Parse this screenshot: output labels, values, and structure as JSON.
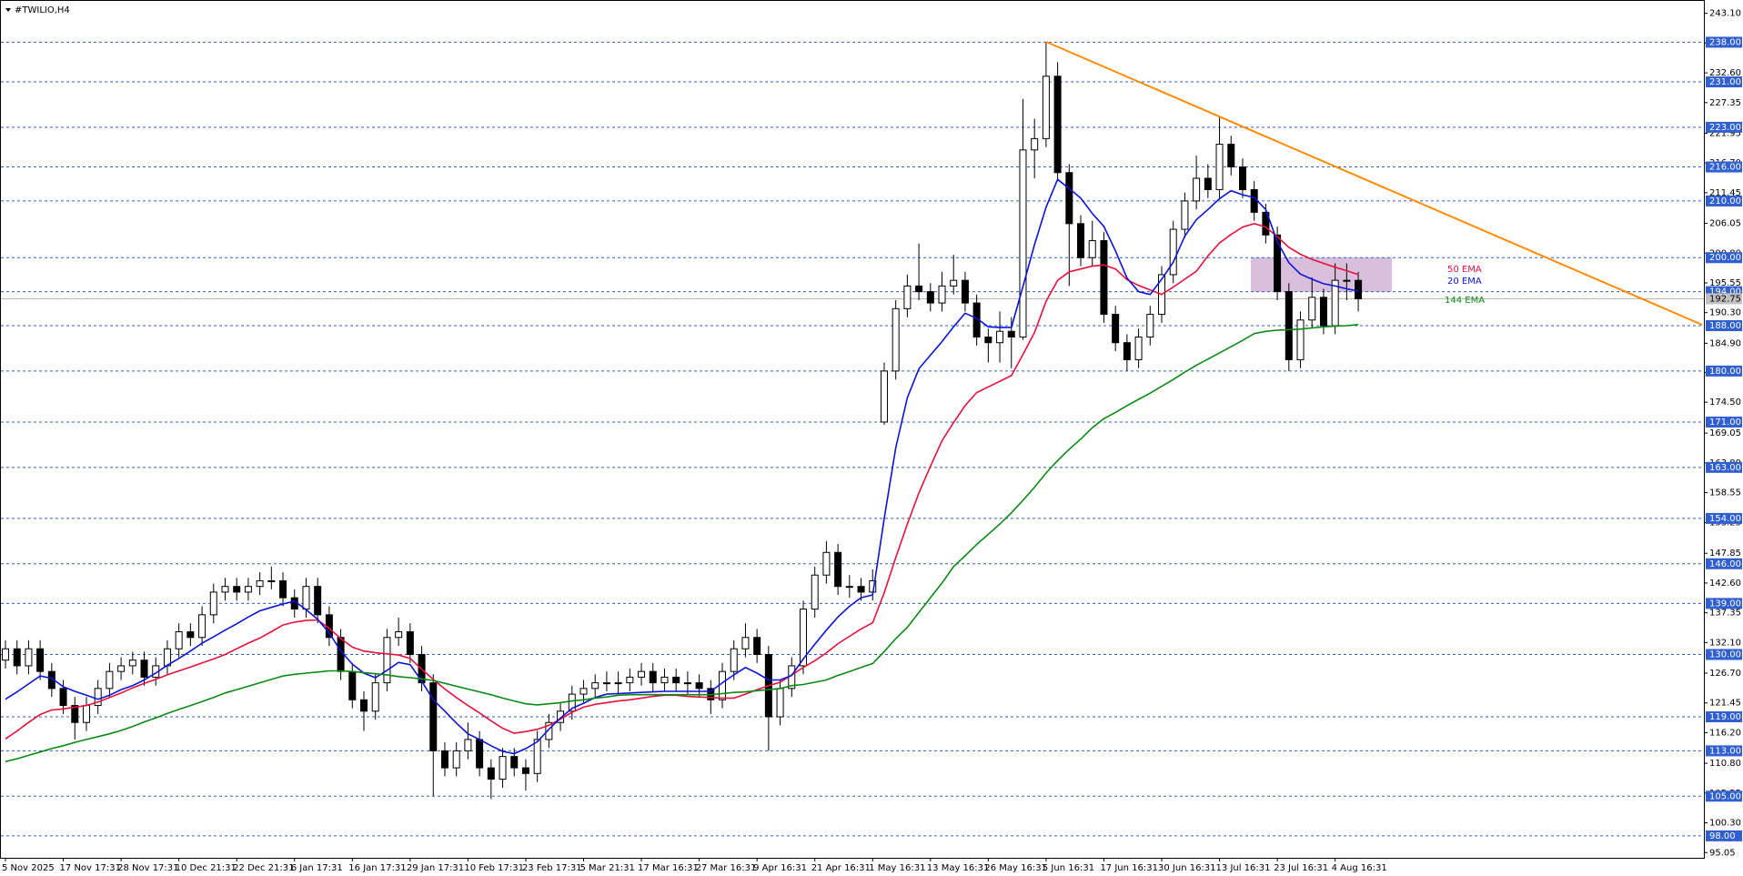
{
  "chart_data": {
    "type": "candlestick",
    "title": "#TWILIO,H4",
    "categories": [
      "5 Nov 2025",
      null,
      null,
      null,
      null,
      "17 Nov 17:31",
      null,
      null,
      null,
      null,
      "28 Nov 17:31",
      null,
      null,
      null,
      null,
      "10 Dec 21:31",
      null,
      null,
      null,
      null,
      "22 Dec 21:31",
      null,
      null,
      null,
      null,
      "6 Jan 17:31",
      null,
      null,
      null,
      null,
      "16 Jan 17:31",
      null,
      null,
      null,
      null,
      "29 Jan 17:31",
      null,
      null,
      null,
      null,
      "10 Feb 17:31",
      null,
      null,
      null,
      null,
      "23 Feb 17:31",
      null,
      null,
      null,
      null,
      "5 Mar 21:31",
      null,
      null,
      null,
      null,
      "17 Mar 16:31",
      null,
      null,
      null,
      null,
      "27 Mar 16:31",
      null,
      null,
      null,
      null,
      "9 Apr 16:31",
      null,
      null,
      null,
      null,
      "21 Apr 16:31",
      null,
      null,
      null,
      null,
      "1 May 16:31",
      null,
      null,
      null,
      null,
      "13 May 16:31",
      null,
      null,
      null,
      null,
      "26 May 16:31",
      null,
      null,
      null,
      null,
      "5 Jun 16:31",
      null,
      null,
      null,
      null,
      "17 Jun 16:31",
      null,
      null,
      null,
      null,
      "30 Jun 16:31",
      null,
      null,
      null,
      null,
      "13 Jul 16:31",
      null,
      null,
      null,
      null,
      "23 Jul 16:31",
      null,
      null,
      null,
      null,
      "4 Aug 16:31",
      null,
      null
    ],
    "open": [
      129,
      131,
      128,
      131,
      127,
      124,
      121,
      118,
      121,
      124,
      127,
      128,
      129,
      126,
      128,
      131,
      134,
      133,
      137,
      141,
      142,
      141,
      142,
      143,
      143,
      140,
      138,
      142,
      137,
      133,
      127,
      122,
      120,
      125,
      133,
      134,
      130,
      125,
      113,
      110,
      113,
      115,
      110,
      108,
      112,
      110,
      109,
      115,
      118,
      120,
      123,
      124,
      125,
      125,
      125,
      126,
      127,
      125,
      126,
      125,
      125,
      124,
      122,
      127,
      131,
      133,
      130,
      119,
      124,
      128,
      138,
      144,
      148,
      142,
      142,
      141,
      171,
      180,
      191,
      195,
      194,
      192,
      195,
      196,
      192,
      186,
      185,
      187,
      186,
      219,
      221,
      232,
      215,
      206,
      200,
      203,
      190,
      185,
      182,
      186,
      190,
      197,
      205,
      210,
      214,
      212,
      220,
      216,
      212,
      208,
      204,
      194,
      182,
      189,
      193,
      188,
      196,
      196
    ],
    "high": [
      132.5,
      132.5,
      132.5,
      132.5,
      128.5,
      125.5,
      122.5,
      122.5,
      125.5,
      128.5,
      129.5,
      130.5,
      130.5,
      129.5,
      132.5,
      135.5,
      135.5,
      138.5,
      142.5,
      143.5,
      143.5,
      143.5,
      144.5,
      145.5,
      144.5,
      141.5,
      143.5,
      143.5,
      138.5,
      134.5,
      128.5,
      123.5,
      126.5,
      134.5,
      136.5,
      135.5,
      131.5,
      126.5,
      114.5,
      114.5,
      118,
      116.5,
      111.5,
      113.5,
      113.5,
      111.5,
      116.5,
      119.5,
      121.5,
      124.5,
      125.5,
      126.5,
      127,
      127,
      127.5,
      128.5,
      128.5,
      127.5,
      127.5,
      127,
      126.5,
      125.5,
      128.5,
      132.5,
      135.5,
      134.5,
      131.5,
      125.5,
      129.5,
      139.5,
      145.5,
      150,
      149.5,
      144,
      143.5,
      145,
      181.5,
      192.5,
      197,
      202.5,
      195.5,
      197.5,
      200.5,
      197.5,
      193.5,
      187.5,
      190.5,
      189.5,
      228,
      224.5,
      238,
      234.5,
      216.5,
      207.5,
      206.5,
      204.5,
      191.5,
      186.5,
      187.5,
      191.5,
      198.5,
      206.5,
      211.5,
      218,
      216.5,
      225,
      221.5,
      217.5,
      213.5,
      209.5,
      205.5,
      195.5,
      190.5,
      196.5,
      194.5,
      199,
      199,
      197.5
    ],
    "low": [
      127.5,
      126.5,
      126.5,
      125.5,
      122.5,
      119.5,
      115,
      116.5,
      119.5,
      122.5,
      125.5,
      126.5,
      124.5,
      124.5,
      126.5,
      129.5,
      131.5,
      131.5,
      135.5,
      139.5,
      139.5,
      139.5,
      140.5,
      141.5,
      138.5,
      136.5,
      136.5,
      135.5,
      131.5,
      125.5,
      120.5,
      116.5,
      118.5,
      123.5,
      131.5,
      128.5,
      123.5,
      105,
      108.5,
      108.5,
      111.5,
      108.5,
      104.5,
      106.5,
      108.5,
      106,
      107.5,
      113.5,
      116.5,
      118.5,
      121.5,
      122.5,
      123.5,
      123,
      123.5,
      124.5,
      123.5,
      123.5,
      123.5,
      123,
      122.5,
      119.5,
      120.5,
      125.5,
      129.5,
      128.5,
      113,
      117.5,
      122.5,
      126.5,
      136.5,
      142.5,
      140.5,
      140,
      139.5,
      139.5,
      170.5,
      178.5,
      189.5,
      192.5,
      190.5,
      190.5,
      193.5,
      190.5,
      184.5,
      181.5,
      181.5,
      180.5,
      185.5,
      214,
      219.5,
      213.5,
      195,
      198.5,
      198.5,
      188.5,
      183.5,
      180,
      180.5,
      184.5,
      188.5,
      195.5,
      203.5,
      208.5,
      210.5,
      210.5,
      214.5,
      210.5,
      206.5,
      202.5,
      192.5,
      180,
      180.5,
      187.5,
      186.5,
      186.5,
      192.5,
      190.5
    ],
    "close": [
      131,
      128,
      131,
      127,
      124,
      121,
      118,
      121,
      124,
      127,
      128,
      129,
      126,
      128,
      131,
      134,
      133,
      137,
      141,
      142,
      141,
      142,
      143,
      143,
      140,
      138,
      142,
      137,
      133,
      127,
      122,
      120,
      125,
      133,
      134,
      130,
      125,
      113,
      110,
      113,
      115,
      110,
      108,
      112,
      110,
      109,
      115,
      118,
      120,
      123,
      124,
      125,
      125,
      125,
      126,
      127,
      125,
      126,
      125,
      125,
      124,
      122,
      127,
      131,
      133,
      130,
      119,
      124,
      128,
      138,
      144,
      148,
      142,
      142,
      141,
      143,
      180,
      191,
      195,
      194,
      192,
      195,
      196,
      192,
      186,
      185,
      187,
      186,
      219,
      221,
      232,
      215,
      206,
      200,
      203,
      190,
      185,
      182,
      186,
      190,
      197,
      205,
      210,
      214,
      212,
      220,
      216,
      212,
      208,
      204,
      194,
      182,
      189,
      193,
      188,
      196,
      196,
      192.75
    ],
    "bull_color": "#ffffff",
    "bear_color": "#000000",
    "series": [
      {
        "name": "50 EMA",
        "color": "#e8103c",
        "values": [
          115.1,
          116.5,
          118,
          119.4,
          120.2,
          120.4,
          120.7,
          121,
          121.6,
          122.4,
          123.2,
          124.1,
          124.9,
          125.6,
          126.4,
          127.1,
          127.8,
          128.5,
          129.2,
          130,
          131,
          132,
          132.9,
          134,
          135.2,
          135.7,
          136,
          136.1,
          134.6,
          132.8,
          131.3,
          130.6,
          130.3,
          130.1,
          129.9,
          129.3,
          127.4,
          125.6,
          123.9,
          122.4,
          121,
          119.7,
          118.3,
          117,
          116.1,
          116.4,
          116.8,
          117.5,
          118.6,
          119.8,
          120.7,
          121.2,
          121.5,
          121.8,
          122,
          122.3,
          122.6,
          122.8,
          122.8,
          122.6,
          122.5,
          122.4,
          122.3,
          122.3,
          123,
          123.8,
          124.5,
          125.1,
          126.4,
          127.7,
          128.9,
          130.3,
          131.9,
          133.2,
          134.5,
          135.6,
          140.9,
          147.1,
          153,
          158.5,
          163.2,
          167.7,
          170.9,
          173.9,
          176.2,
          177.2,
          178.2,
          179.2,
          182.9,
          186.8,
          192.3,
          196,
          197.5,
          198,
          198.5,
          198.7,
          198,
          196.1,
          195.1,
          194.3,
          193.5,
          194.8,
          196.2,
          197.6,
          200.3,
          202.6,
          204.1,
          205.4,
          206,
          205.4,
          203.7,
          201.8,
          200.6,
          199.7,
          199,
          198.3,
          197.7,
          197
        ]
      },
      {
        "name": "20 EMA",
        "color": "#0a14d8",
        "values": [
          122.1,
          123.4,
          124.8,
          126.2,
          125.8,
          124.3,
          123.5,
          122.8,
          122.1,
          122.8,
          123.8,
          124.5,
          125.5,
          126.7,
          128.1,
          129.3,
          130.6,
          132,
          133.1,
          134.3,
          135.4,
          136.6,
          137.7,
          138.3,
          138.9,
          139.4,
          137.9,
          136.2,
          133.8,
          130.6,
          128.3,
          126.7,
          125.9,
          127.2,
          128.6,
          128.2,
          125.3,
          122,
          120,
          117.9,
          116,
          115,
          113.9,
          112.9,
          112.5,
          113.4,
          114.6,
          116.8,
          118.8,
          120.5,
          121.4,
          122.4,
          123,
          123.1,
          123.2,
          123.3,
          123.4,
          123.5,
          123.5,
          123.5,
          123.5,
          123.5,
          125,
          126.4,
          127.7,
          126.7,
          125.5,
          125.5,
          126.3,
          129.2,
          131.8,
          134.3,
          136.6,
          138.5,
          140,
          140.5,
          154,
          166.5,
          175.3,
          180.4,
          182.8,
          185.2,
          187.8,
          190.2,
          189.3,
          187.8,
          187.7,
          187.7,
          194.9,
          202.3,
          208.9,
          213.8,
          212.2,
          210.5,
          207.8,
          205.5,
          201.2,
          196.4,
          194,
          193.5,
          196.2,
          199.2,
          203.8,
          206.7,
          208.5,
          210.4,
          211.8,
          211.1,
          210.6,
          208.5,
          202.8,
          199.1,
          197.1,
          196.2,
          195.4,
          195,
          194.5,
          194.1
        ]
      },
      {
        "name": "144 EMA",
        "color": "#0a8a14",
        "values": [
          111.1,
          111.6,
          112.2,
          112.8,
          113.4,
          113.9,
          114.5,
          115,
          115.5,
          116,
          116.6,
          117.3,
          118.1,
          118.8,
          119.6,
          120.3,
          121,
          121.7,
          122.4,
          123.2,
          123.8,
          124.4,
          125,
          125.6,
          126.2,
          126.5,
          126.7,
          126.9,
          127.1,
          127.1,
          127,
          126.8,
          126.6,
          126.4,
          126.1,
          125.9,
          125.7,
          125.4,
          124.9,
          124.4,
          123.9,
          123.4,
          122.9,
          122.3,
          121.8,
          121.3,
          121.1,
          121.3,
          121.5,
          121.8,
          122,
          122.3,
          122.5,
          122.8,
          122.9,
          122.9,
          122.9,
          122.9,
          122.9,
          122.9,
          122.9,
          122.9,
          123.1,
          123.3,
          123.4,
          123.6,
          123.8,
          124,
          124.5,
          124.7,
          125.1,
          125.5,
          126.3,
          127,
          127.7,
          128.4,
          130.5,
          132.8,
          134.8,
          137.4,
          140,
          142.6,
          145.5,
          147.4,
          149.4,
          151.2,
          153,
          155,
          157.2,
          159.5,
          162,
          164.2,
          166.2,
          168,
          170,
          171.6,
          172.7,
          173.9,
          175,
          176.1,
          177.3,
          178.5,
          179.8,
          181,
          182.1,
          183.2,
          184.3,
          185.4,
          186.6,
          187,
          187.2,
          187.3,
          187.4,
          187.6,
          187.8,
          187.9,
          188,
          188.2
        ]
      }
    ],
    "ylim": [
      94.13,
      245.45
    ],
    "yticks": [
      95.05,
      {
        "value": 100.3,
        "label": "100.30"
      },
      105.55,
      {
        "value": 110.8,
        "label": "110.80"
      },
      {
        "value": 116.2,
        "label": "116.20"
      },
      121.45,
      {
        "value": 126.7,
        "label": "126.70"
      },
      {
        "value": 132.1,
        "label": "132.10"
      },
      137.35,
      {
        "value": 142.6,
        "label": "142.60"
      },
      147.85,
      153.25,
      158.55,
      {
        "value": 163.8,
        "label": "163.80"
      },
      169.05,
      {
        "value": 174.5,
        "label": "174.50"
      },
      179.75,
      {
        "value": 184.9,
        "label": "184.90"
      },
      {
        "value": 190.3,
        "label": "190.30"
      },
      195.55,
      {
        "value": 200.8,
        "label": "200.80"
      },
      206.05,
      211.45,
      {
        "value": 216.7,
        "label": "216.70"
      },
      221.95,
      227.35,
      {
        "value": 232.6,
        "label": "232.60"
      },
      237.85,
      {
        "value": 243.1,
        "label": "243.10"
      }
    ],
    "levels": [
      {
        "value": 238,
        "label": "238.00"
      },
      {
        "value": 231,
        "label": "231.00"
      },
      {
        "value": 223,
        "label": "223.00"
      },
      {
        "value": 216,
        "label": "216.00"
      },
      {
        "value": 210,
        "label": "210.00"
      },
      {
        "value": 200,
        "label": "200.00"
      },
      {
        "value": 194,
        "label": "194.00"
      },
      {
        "value": 188,
        "label": "188.00"
      },
      {
        "value": 180,
        "label": "180.00"
      },
      {
        "value": 171,
        "label": "171.00"
      },
      {
        "value": 163,
        "label": "163.00"
      },
      {
        "value": 154,
        "label": "154.00"
      },
      {
        "value": 146,
        "label": "146.00"
      },
      {
        "value": 139,
        "label": "139.00"
      },
      {
        "value": 130,
        "label": "130.00"
      },
      {
        "value": 119,
        "label": "119.00"
      },
      {
        "value": 113,
        "label": "113.00"
      },
      {
        "value": 105,
        "label": "105.00"
      },
      {
        "value": 98,
        "label": "98.00"
      }
    ],
    "level_color": "#2f5fd0",
    "last_price": 192.75
  }
}
